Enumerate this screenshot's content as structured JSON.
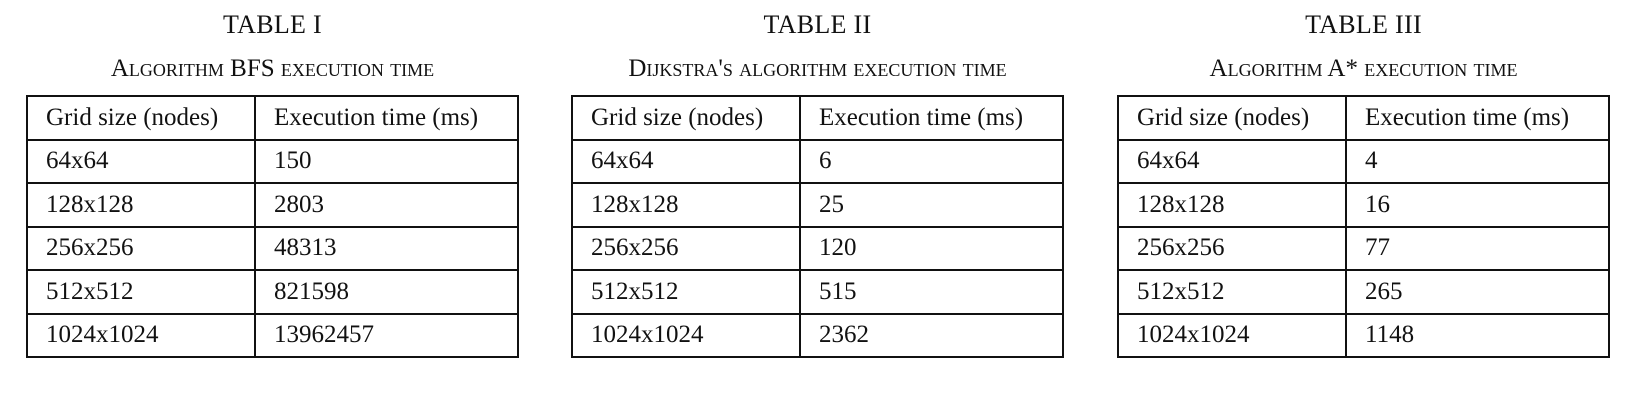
{
  "tables": [
    {
      "number": "TABLE I",
      "caption": "Algorithm BFS execution time",
      "headers": [
        "Grid size (nodes)",
        "Execution time (ms)"
      ],
      "rows": [
        [
          "64x64",
          "150"
        ],
        [
          "128x128",
          "2803"
        ],
        [
          "256x256",
          "48313"
        ],
        [
          "512x512",
          "821598"
        ],
        [
          "1024x1024",
          "13962457"
        ]
      ]
    },
    {
      "number": "TABLE II",
      "caption": "Dijkstra's algorithm execution time",
      "headers": [
        "Grid size (nodes)",
        "Execution time (ms)"
      ],
      "rows": [
        [
          "64x64",
          "6"
        ],
        [
          "128x128",
          "25"
        ],
        [
          "256x256",
          "120"
        ],
        [
          "512x512",
          "515"
        ],
        [
          "1024x1024",
          "2362"
        ]
      ]
    },
    {
      "number": "TABLE III",
      "caption": "Algorithm A* execution time",
      "headers": [
        "Grid size (nodes)",
        "Execution time (ms)"
      ],
      "rows": [
        [
          "64x64",
          "4"
        ],
        [
          "128x128",
          "16"
        ],
        [
          "256x256",
          "77"
        ],
        [
          "512x512",
          "265"
        ],
        [
          "1024x1024",
          "1148"
        ]
      ]
    }
  ]
}
